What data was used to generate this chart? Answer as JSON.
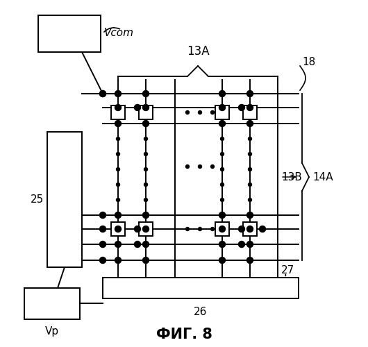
{
  "title": "ФИГ. 8",
  "bg_color": "#ffffff",
  "vcom_label": "Vcom",
  "vp_label": "Vp",
  "label_13A": "13A",
  "label_13B": "13B",
  "label_14A": "14A",
  "label_18": "18",
  "label_25": "25",
  "label_26": "26",
  "label_27": "27",
  "figsize": [
    5.3,
    5.0
  ],
  "dpi": 100
}
